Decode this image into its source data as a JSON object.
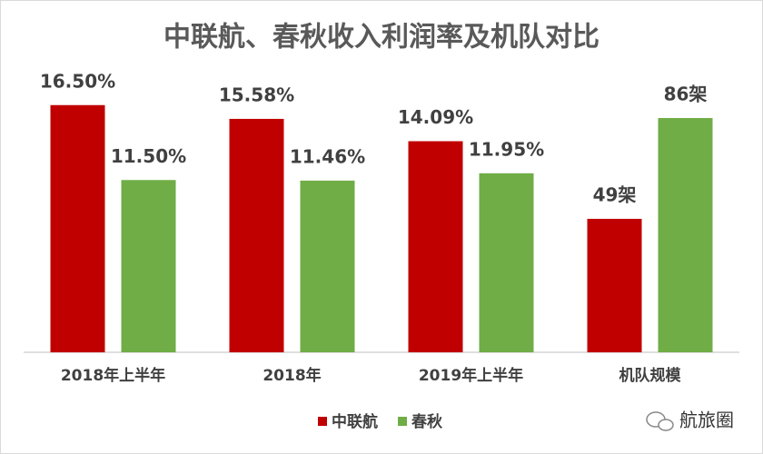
{
  "chart_data": {
    "type": "bar",
    "title": "中联航、春秋收入利润率及机队对比",
    "categories": [
      "2018年上半年",
      "2018年",
      "2019年上半年",
      "机队规模"
    ],
    "category_axis": [
      "y",
      "y",
      "y",
      "y2"
    ],
    "series": [
      {
        "name": "中联航",
        "color": "#c00000",
        "values": [
          16.5,
          15.58,
          14.09,
          49
        ],
        "value_labels": [
          "16.50%",
          "15.58%",
          "14.09%",
          "49架"
        ]
      },
      {
        "name": "春秋",
        "color": "#70ad47",
        "values": [
          11.5,
          11.46,
          11.95,
          86
        ],
        "value_labels": [
          "11.50%",
          "11.46%",
          "11.95%",
          "86架"
        ]
      }
    ],
    "ylim": [
      0,
      20
    ],
    "y2lim": [
      0,
      110
    ],
    "legend": "bottom",
    "grid": false
  },
  "watermark": "航旅圈"
}
